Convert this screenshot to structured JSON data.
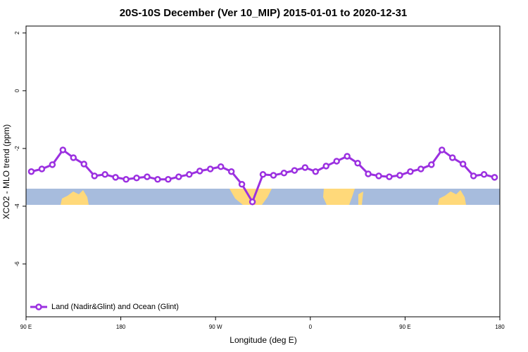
{
  "chart_data": {
    "type": "line",
    "title": "20S-10S December (Ver 10_MIP)   2015-01-01 to 2020-12-31",
    "x_label": "Longitude (deg E)",
    "y_label": "XCO2 - MLO trend (ppm)",
    "xlim": [
      90,
      540
    ],
    "xticks": [
      {
        "value": 90,
        "label": "90 E"
      },
      {
        "value": 180,
        "label": "180"
      },
      {
        "value": 270,
        "label": "90 W"
      },
      {
        "value": 360,
        "label": "0"
      },
      {
        "value": 450,
        "label": "90 E"
      },
      {
        "value": 540,
        "label": "180"
      }
    ],
    "ylim": [
      -7.83,
      2.24
    ],
    "yticks": [
      -6,
      -4,
      -2,
      0,
      2
    ],
    "legend": "bottom-left",
    "series": [
      {
        "name": "Land (Nadir&Glint) and Ocean (Glint)",
        "color": "#9b30e0",
        "x": [
          95,
          105,
          115,
          125,
          135,
          145,
          155,
          165,
          175,
          185,
          195,
          205,
          215,
          225,
          235,
          245,
          255,
          265,
          275,
          285,
          295,
          305,
          315,
          325,
          335,
          345,
          355,
          365,
          375,
          385,
          395,
          405,
          415,
          425,
          435,
          445,
          455,
          465,
          475,
          485,
          495,
          505,
          515,
          525,
          535
        ],
        "values": [
          -2.8,
          -2.71,
          -2.56,
          -2.05,
          -2.32,
          -2.54,
          -2.95,
          -2.9,
          -3.0,
          -3.07,
          -3.02,
          -2.98,
          -3.07,
          -3.07,
          -2.98,
          -2.9,
          -2.78,
          -2.71,
          -2.63,
          -2.8,
          -3.24,
          -3.85,
          -2.9,
          -2.93,
          -2.85,
          -2.76,
          -2.66,
          -2.8,
          -2.61,
          -2.44,
          -2.27,
          -2.51,
          -2.88,
          -2.95,
          -2.98,
          -2.93,
          -2.8,
          -2.71,
          -2.56,
          -2.05,
          -2.32,
          -2.54,
          -2.95,
          -2.9,
          -3.0
        ]
      }
    ]
  }
}
